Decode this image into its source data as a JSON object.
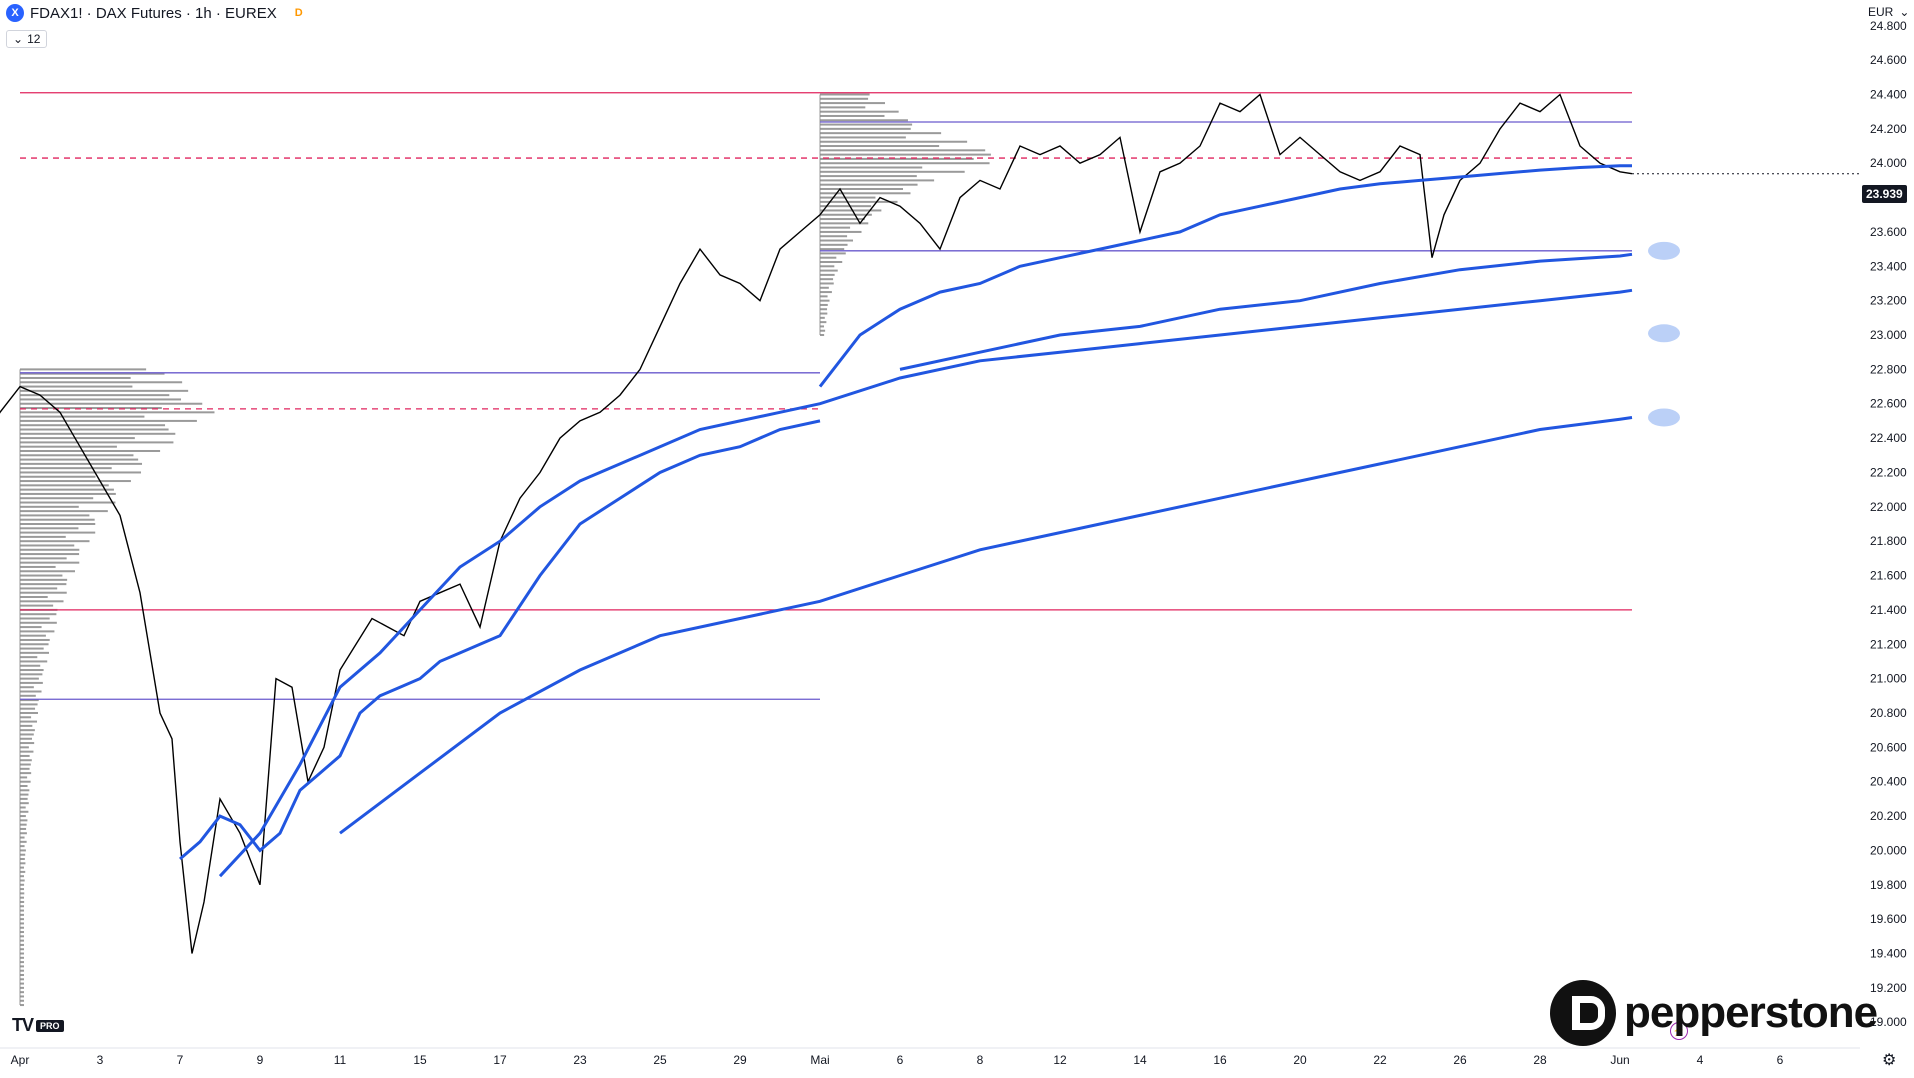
{
  "header": {
    "symbol_badge": "X",
    "title": "FDAX1! · DAX Futures · 1h · EUREX",
    "delay_badge": "D",
    "indicator_count": "12",
    "currency": "EUR"
  },
  "branding": {
    "tv_label": "TV",
    "tv_tier": "PRO",
    "broker": "pepperstone"
  },
  "colors": {
    "candle": "#000000",
    "vwap_blue": "#2156e0",
    "vwap_thin": "#555555",
    "band": "#e8e8e8",
    "range_top": "#e0245e",
    "range_mid": "#6a5acd",
    "dashed": "#e0245e",
    "profile": "#888888",
    "price_tag": "#131722"
  },
  "chart_data": {
    "type": "line",
    "title": "FDAX1! · DAX Futures · 1h · EUREX",
    "xlabel": "",
    "ylabel": "",
    "y_unit": "EUR",
    "ylim": [
      18850,
      24950
    ],
    "y_ticks": [
      19000,
      19200,
      19400,
      19600,
      19800,
      20000,
      20200,
      20400,
      20600,
      20800,
      21000,
      21200,
      21400,
      21600,
      21800,
      22000,
      22200,
      22400,
      22600,
      22800,
      23000,
      23200,
      23400,
      23600,
      23800,
      24000,
      24200,
      24400,
      24600,
      24800
    ],
    "y_tick_labels": [
      "19.000",
      "19.200",
      "19.400",
      "19.600",
      "19.800",
      "20.000",
      "20.200",
      "20.400",
      "20.600",
      "20.800",
      "21.000",
      "21.200",
      "21.400",
      "21.600",
      "21.800",
      "22.000",
      "22.200",
      "22.400",
      "22.600",
      "22.800",
      "23.000",
      "23.200",
      "23.400",
      "23.600",
      "23.800",
      "24.000",
      "24.200",
      "24.400",
      "24.600",
      "24.800"
    ],
    "x_tick_labels": [
      "Apr",
      "3",
      "7",
      "9",
      "11",
      "15",
      "17",
      "23",
      "25",
      "29",
      "Mai",
      "6",
      "8",
      "12",
      "14",
      "16",
      "20",
      "22",
      "26",
      "28",
      "Jun",
      "4",
      "6"
    ],
    "x_tick_index": [
      0,
      2,
      4,
      6,
      8,
      10,
      12,
      14,
      16,
      18,
      20,
      22,
      24,
      26,
      28,
      30,
      32,
      34,
      36,
      38,
      40,
      42,
      44
    ],
    "x_span": [
      -0.5,
      46
    ],
    "last_price": 23939,
    "last_price_label": "23.939",
    "grid": false,
    "series": [
      {
        "kind": "price",
        "x": [
          -1.5,
          -1.0,
          -0.5,
          0.0,
          0.5,
          1.0,
          1.5,
          2.0,
          2.5,
          3.0,
          3.5,
          3.8,
          4.0,
          4.3,
          4.6,
          5.0,
          5.5,
          6.0,
          6.4,
          6.8,
          7.2,
          7.6,
          8.0,
          8.4,
          8.8,
          9.2,
          9.6,
          10.0,
          10.5,
          11.0,
          11.5,
          12.0,
          12.5,
          13.0,
          13.5,
          14.0,
          14.5,
          15.0,
          15.5,
          16.0,
          16.5,
          17.0,
          17.5,
          18.0,
          18.5,
          19.0,
          19.5,
          20.0,
          20.5,
          21.0,
          21.5,
          22.0,
          22.5,
          23.0,
          23.5,
          24.0,
          24.5,
          25.0,
          25.5,
          26.0,
          26.5,
          27.0,
          27.5,
          28.0,
          28.5,
          29.0,
          29.5,
          30.0,
          30.5,
          31.0,
          31.5,
          32.0,
          32.5,
          33.0,
          33.5,
          34.0,
          34.5,
          35.0,
          35.3,
          35.6,
          36.0,
          36.5,
          37.0,
          37.5,
          38.0,
          38.5,
          39.0,
          39.5,
          40.0,
          40.3
        ],
        "values": [
          22750,
          22350,
          22550,
          22700,
          22650,
          22550,
          22350,
          22150,
          21950,
          21500,
          20800,
          20650,
          20050,
          19400,
          19700,
          20300,
          20100,
          19800,
          21000,
          20950,
          20400,
          20600,
          21050,
          21200,
          21350,
          21300,
          21250,
          21450,
          21500,
          21550,
          21300,
          21800,
          22050,
          22200,
          22400,
          22500,
          22550,
          22650,
          22800,
          23050,
          23300,
          23500,
          23350,
          23300,
          23200,
          23500,
          23600,
          23700,
          23850,
          23650,
          23800,
          23750,
          23650,
          23500,
          23800,
          23900,
          23850,
          24100,
          24050,
          24100,
          24000,
          24050,
          24150,
          23600,
          23950,
          24000,
          24100,
          24350,
          24300,
          24400,
          24050,
          24150,
          24050,
          23950,
          23900,
          23950,
          24100,
          24050,
          23450,
          23700,
          23900,
          24000,
          24200,
          24350,
          24300,
          24400,
          24100,
          24000,
          23950,
          23939
        ]
      },
      {
        "kind": "vwap",
        "x": [
          4.0,
          4.5,
          5.0,
          5.5,
          6.0,
          6.5,
          7.0,
          7.5,
          8.0,
          8.5,
          9.0,
          9.5,
          10.0,
          10.5,
          11.0,
          11.5,
          12.0,
          13.0,
          14.0,
          15.0,
          16.0,
          17.0,
          18.0,
          19.0,
          20.0
        ],
        "values": [
          19950,
          20050,
          20200,
          20150,
          20000,
          20100,
          20350,
          20450,
          20550,
          20800,
          20900,
          20950,
          21000,
          21100,
          21150,
          21200,
          21250,
          21600,
          21900,
          22050,
          22200,
          22300,
          22350,
          22450,
          22500
        ]
      },
      {
        "kind": "vwap",
        "x": [
          20.0,
          21.0,
          22.0,
          23.0,
          24.0,
          25.0,
          26.0,
          27.0,
          28.0,
          29.0,
          30.0,
          31.0,
          32.0,
          33.0,
          34.0,
          35.0,
          36.0,
          37.0,
          38.0,
          39.0,
          40.0,
          40.3
        ],
        "values": [
          22700,
          23000,
          23150,
          23250,
          23300,
          23400,
          23450,
          23500,
          23550,
          23600,
          23700,
          23750,
          23800,
          23850,
          23880,
          23900,
          23920,
          23940,
          23960,
          23975,
          23985,
          23985
        ]
      },
      {
        "kind": "vwap",
        "x": [
          22.0,
          24.0,
          26.0,
          28.0,
          30.0,
          32.0,
          34.0,
          36.0,
          38.0,
          40.0,
          40.3
        ],
        "values": [
          22800,
          22900,
          23000,
          23050,
          23150,
          23200,
          23300,
          23380,
          23430,
          23460,
          23470
        ]
      },
      {
        "kind": "vwap",
        "x": [
          8.0,
          10.0,
          12.0,
          14.0,
          16.0,
          18.0,
          20.0,
          22.0,
          24.0,
          26.0,
          28.0,
          30.0,
          32.0,
          34.0,
          36.0,
          38.0,
          40.0,
          40.3
        ],
        "values": [
          20100,
          20450,
          20800,
          21050,
          21250,
          21350,
          21450,
          21600,
          21750,
          21850,
          21950,
          22050,
          22150,
          22250,
          22350,
          22450,
          22510,
          22520
        ]
      },
      {
        "kind": "vwap",
        "x": [
          5.0,
          6.0,
          7.0,
          8.0,
          9.0,
          10.0,
          11.0,
          12.0,
          13.0,
          14.0,
          15.0,
          16.0,
          17.0,
          18.0,
          19.0,
          20.0,
          22.0,
          24.0,
          26.0,
          28.0,
          30.0,
          32.0,
          34.0,
          36.0,
          38.0,
          40.0,
          40.3
        ],
        "values": [
          19850,
          20100,
          20500,
          20950,
          21150,
          21400,
          21650,
          21800,
          22000,
          22150,
          22250,
          22350,
          22450,
          22500,
          22550,
          22600,
          22750,
          22850,
          22900,
          22950,
          23000,
          23050,
          23100,
          23150,
          23200,
          23250,
          23260
        ]
      }
    ],
    "horizontal_levels": [
      {
        "value": 24410,
        "x_from": 0,
        "x_to": 40.3,
        "style": "solid",
        "color": "#e0245e"
      },
      {
        "value": 24030,
        "x_from": 0,
        "x_to": 40.3,
        "style": "dashed",
        "color": "#e0245e"
      },
      {
        "value": 24240,
        "x_from": 20,
        "x_to": 40.3,
        "style": "solid",
        "color": "#6a5acd"
      },
      {
        "value": 23490,
        "x_from": 20,
        "x_to": 40.3,
        "style": "solid",
        "color": "#6a5acd"
      },
      {
        "value": 22780,
        "x_from": 0,
        "x_to": 20,
        "style": "solid",
        "color": "#6a5acd"
      },
      {
        "value": 22570,
        "x_from": 0,
        "x_to": 20,
        "style": "dashed",
        "color": "#e0245e"
      },
      {
        "value": 21400,
        "x_from": 0,
        "x_to": 40.3,
        "style": "solid",
        "color": "#e0245e"
      },
      {
        "value": 20880,
        "x_from": 0,
        "x_to": 20,
        "style": "solid",
        "color": "#6a5acd"
      }
    ],
    "volume_profiles": [
      {
        "x_from": 0,
        "price_from": 19100,
        "price_to": 22800,
        "poc": 22570
      },
      {
        "x_from": 20,
        "price_from": 23000,
        "price_to": 24400,
        "poc": 24040
      }
    ],
    "anchor_markers": [
      23490,
      23010,
      22520
    ]
  }
}
